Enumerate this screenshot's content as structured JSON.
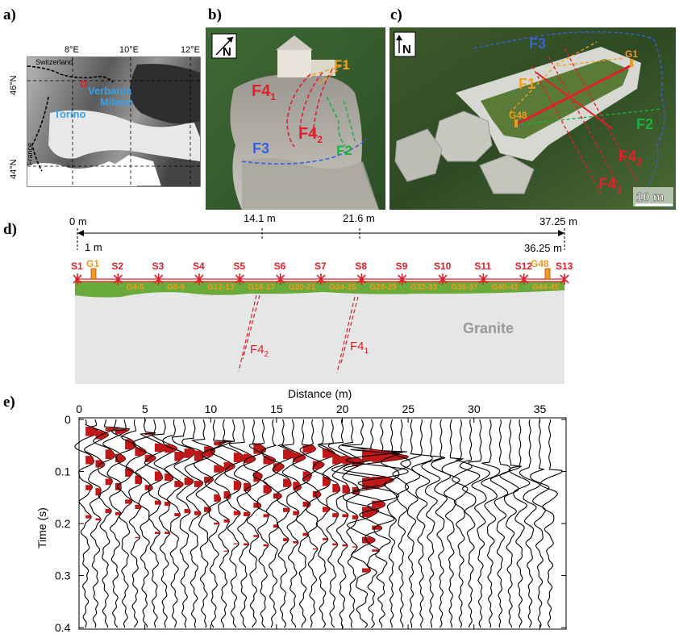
{
  "panels": {
    "a": {
      "label": "a)",
      "lon_ticks": [
        "8°E",
        "10°E",
        "12°E"
      ],
      "lat_ticks": [
        "46°N",
        "44°N"
      ],
      "country_labels": [
        "Switzerland",
        "France"
      ],
      "cities": [
        "Verbania",
        "Milano",
        "Torino"
      ]
    },
    "b": {
      "label": "b)",
      "north": "N",
      "faults": [
        {
          "base": "F1",
          "sub": "",
          "color": "#f0a020"
        },
        {
          "base": "F4",
          "sub": "1",
          "color": "#e0202a"
        },
        {
          "base": "F4",
          "sub": "2",
          "color": "#e0202a"
        },
        {
          "base": "F3",
          "sub": "",
          "color": "#3860d8"
        },
        {
          "base": "F2",
          "sub": "",
          "color": "#20b040"
        }
      ]
    },
    "c": {
      "label": "c)",
      "north": "N",
      "faults": [
        {
          "base": "F3",
          "sub": "",
          "color": "#3860d8"
        },
        {
          "base": "F1",
          "sub": "",
          "color": "#f0a020"
        },
        {
          "base": "F2",
          "sub": "",
          "color": "#20b040"
        },
        {
          "base": "F4",
          "sub": "2",
          "color": "#e0202a"
        },
        {
          "base": "F4",
          "sub": "1",
          "color": "#e0202a"
        }
      ],
      "geophones": [
        "G1",
        "G48"
      ],
      "scale": "10 m"
    },
    "d": {
      "label": "d)",
      "top_distances": [
        "0 m",
        "14.1 m",
        "21.6 m",
        "37.25 m"
      ],
      "inner_distances": [
        "1 m",
        "36.25 m"
      ],
      "sources": [
        "S1",
        "S2",
        "S3",
        "S4",
        "S5",
        "S6",
        "S7",
        "S8",
        "S9",
        "S10",
        "S11",
        "S12",
        "S13"
      ],
      "geophone_ends": [
        "G1",
        "G48"
      ],
      "geophone_groups": [
        "G4-5",
        "G8-9",
        "G12-13",
        "G16-17",
        "G20-21",
        "G24-25",
        "G28-29",
        "G32-33",
        "G36-37",
        "G40-41",
        "G44-45"
      ],
      "rock_label": "Granite",
      "faults": [
        {
          "base": "F4",
          "sub": "2"
        },
        {
          "base": "F4",
          "sub": "1"
        }
      ],
      "xlabel": "Distance (m)"
    },
    "e": {
      "label": "e)",
      "ylabel": "Time (s)"
    }
  },
  "colors": {
    "fault_red": "#e0202a",
    "fault_orange": "#f0a020",
    "fault_blue": "#3860d8",
    "fault_green": "#20b040",
    "source_red": "#e0202a",
    "geophone_orange": "#f09a20",
    "soil_green": "#6aaa3a",
    "granite_grey": "#e6e6e6",
    "city_blue": "#3aa0e8",
    "trace_fill_red": "#c01818"
  },
  "chart_data": {
    "type": "seismogram",
    "xlabel": "Distance (m)",
    "ylabel": "Time (s)",
    "xlim": [
      0,
      37
    ],
    "ylim": [
      0.4,
      0
    ],
    "x_ticks": [
      0,
      5,
      10,
      15,
      20,
      25,
      30,
      35
    ],
    "y_ticks": [
      0,
      0.1,
      0.2,
      0.3,
      0.4
    ],
    "trace_count": 48,
    "trace_spacing_m": 0.75,
    "first_trace_m": 0.5,
    "red_filled_traces_up_to_m": 22.5,
    "first_arrivals": [
      {
        "x": 0.5,
        "t": 0.02
      },
      {
        "x": 5,
        "t": 0.035
      },
      {
        "x": 10,
        "t": 0.05
      },
      {
        "x": 15,
        "t": 0.06
      },
      {
        "x": 21,
        "t": 0.055
      },
      {
        "x": 22.5,
        "t": 0.07
      },
      {
        "x": 30,
        "t": 0.09
      },
      {
        "x": 36.5,
        "t": 0.11
      }
    ]
  }
}
